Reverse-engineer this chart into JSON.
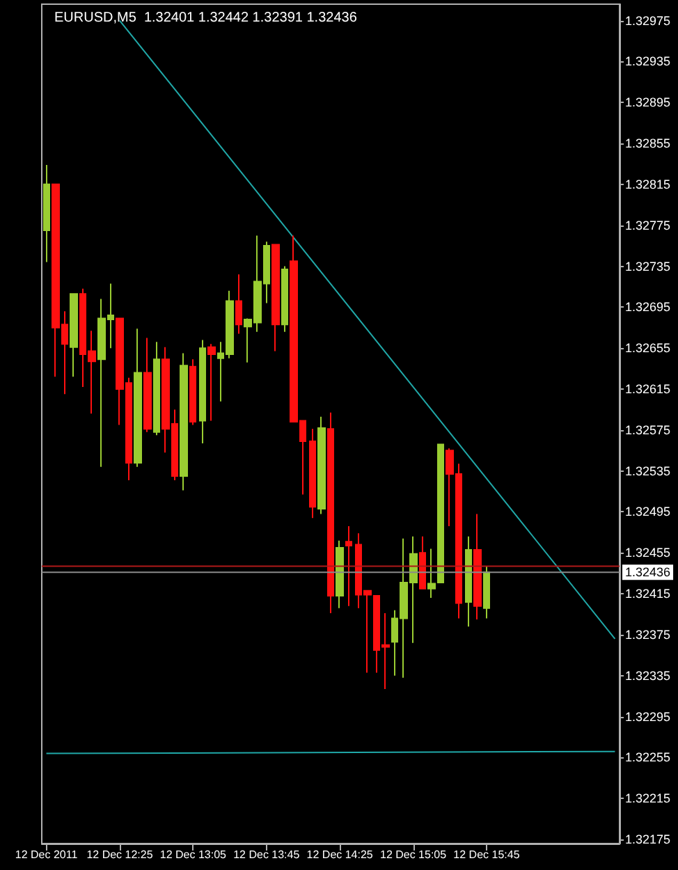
{
  "chart_data": {
    "type": "candlestick",
    "title": "EURUSD,M5  1.32401 1.32442 1.32391 1.32436",
    "categories": [
      "12 Dec 2011",
      null,
      null,
      null,
      null,
      null,
      null,
      null,
      "12 Dec 12:25",
      null,
      null,
      null,
      null,
      null,
      null,
      null,
      "12 Dec 13:05",
      null,
      null,
      null,
      null,
      null,
      null,
      null,
      "12 Dec 13:45",
      null,
      null,
      null,
      null,
      null,
      null,
      null,
      "12 Dec 14:25",
      null,
      null,
      null,
      null,
      null,
      null,
      null,
      "12 Dec 15:05",
      null,
      null,
      null,
      null,
      null,
      null,
      null,
      "12 Dec 15:45",
      null,
      null,
      null,
      null,
      null,
      null,
      null,
      null,
      null,
      null,
      null,
      null,
      null,
      null
    ],
    "series": [
      {
        "type": "candlestick",
        "ohlc": [
          [
            1.3277,
            1.32834,
            1.32739,
            1.32815
          ],
          [
            1.32815,
            1.32815,
            1.32627,
            1.32675
          ],
          [
            1.32678,
            1.32691,
            1.3261,
            1.32659
          ],
          [
            1.32656,
            1.32708,
            1.32627,
            1.32708
          ],
          [
            1.32708,
            1.32713,
            1.32617,
            1.32649
          ],
          [
            1.32652,
            1.32672,
            1.32591,
            1.32642
          ],
          [
            1.32644,
            1.32703,
            1.32539,
            1.32684
          ],
          [
            1.32683,
            1.32718,
            1.32655,
            1.32687
          ],
          [
            1.32684,
            1.32684,
            1.3258,
            1.32615
          ],
          [
            1.32621,
            1.32626,
            1.32526,
            1.32543
          ],
          [
            1.32543,
            1.32674,
            1.32539,
            1.32631
          ],
          [
            1.32631,
            1.32665,
            1.32573,
            1.32576
          ],
          [
            1.32573,
            1.32661,
            1.3257,
            1.32644
          ],
          [
            1.32644,
            1.32656,
            1.32553,
            1.32576
          ],
          [
            1.32581,
            1.32595,
            1.32526,
            1.3253
          ],
          [
            1.3253,
            1.3265,
            1.32516,
            1.32638
          ],
          [
            1.32637,
            1.32644,
            1.3258,
            1.32583
          ],
          [
            1.32584,
            1.32663,
            1.32562,
            1.32655
          ],
          [
            1.32656,
            1.32659,
            1.32584,
            1.32649
          ],
          [
            1.32645,
            1.32661,
            1.32603,
            1.3265
          ],
          [
            1.32649,
            1.32711,
            1.32645,
            1.32701
          ],
          [
            1.32701,
            1.32727,
            1.32669,
            1.32678
          ],
          [
            1.32676,
            1.32684,
            1.32641,
            1.32683
          ],
          [
            1.3268,
            1.32765,
            1.32671,
            1.3272
          ],
          [
            1.32718,
            1.32759,
            1.32699,
            1.32755
          ],
          [
            1.32756,
            1.32756,
            1.32652,
            1.32678
          ],
          [
            1.32678,
            1.32735,
            1.32671,
            1.32732
          ],
          [
            1.3274,
            1.32765,
            1.32583,
            1.32583
          ],
          [
            1.32584,
            1.32584,
            1.32512,
            1.32564
          ],
          [
            1.32564,
            1.32576,
            1.32489,
            1.325
          ],
          [
            1.32498,
            1.32588,
            1.32493,
            1.32577
          ],
          [
            1.32576,
            1.32592,
            1.32396,
            1.32413
          ],
          [
            1.32413,
            1.32467,
            1.32401,
            1.3246
          ],
          [
            1.32466,
            1.32481,
            1.32403,
            1.32462
          ],
          [
            1.32463,
            1.32474,
            1.32401,
            1.32414
          ],
          [
            1.32418,
            1.32418,
            1.32338,
            1.32414
          ],
          [
            1.32413,
            1.32413,
            1.32338,
            1.3236
          ],
          [
            1.32365,
            1.32396,
            1.32322,
            1.32363
          ],
          [
            1.32368,
            1.32399,
            1.32335,
            1.32391
          ],
          [
            1.32391,
            1.32469,
            1.32333,
            1.32426
          ],
          [
            1.32426,
            1.32471,
            1.32367,
            1.32454
          ],
          [
            1.32455,
            1.32471,
            1.3242,
            1.3242
          ],
          [
            1.3242,
            1.32459,
            1.32411,
            1.32425
          ],
          [
            1.32426,
            1.32561,
            1.32426,
            1.32561
          ],
          [
            1.32555,
            1.32557,
            1.32481,
            1.32532
          ],
          [
            1.32532,
            1.32542,
            1.32391,
            1.32406
          ],
          [
            1.32407,
            1.32471,
            1.32383,
            1.32458
          ],
          [
            1.32458,
            1.32493,
            1.3239,
            1.32403
          ],
          [
            1.32401,
            1.32442,
            1.32391,
            1.32436
          ],
          null,
          null,
          null,
          null,
          null,
          null,
          null,
          null,
          null,
          null,
          null,
          null,
          null,
          null
        ],
        "colors": [
          "#9acd32",
          "#ff1010",
          "#ff1010",
          "#9acd32",
          "#ff1010",
          "#ff1010",
          "#9acd32",
          "#9acd32",
          "#ff1010",
          "#ff1010",
          "#9acd32",
          "#ff1010",
          "#9acd32",
          "#ff1010",
          "#ff1010",
          "#9acd32",
          "#ff1010",
          "#9acd32",
          "#ff1010",
          "#9acd32",
          "#9acd32",
          "#ff1010",
          "#9acd32",
          "#9acd32",
          "#9acd32",
          "#ff1010",
          "#9acd32",
          "#ff1010",
          "#ff1010",
          "#ff1010",
          "#9acd32",
          "#ff1010",
          "#9acd32",
          "#ff1010",
          "#ff1010",
          "#ff1010",
          "#ff1010",
          "#ff1010",
          "#9acd32",
          "#9acd32",
          "#9acd32",
          "#ff1010",
          "#9acd32",
          "#9acd32",
          "#ff1010",
          "#ff1010",
          "#9acd32",
          "#ff1010",
          "#9acd32",
          null,
          null,
          null,
          null,
          null,
          null,
          null,
          null,
          null,
          null,
          null,
          null,
          null,
          null
        ]
      },
      {
        "type": "line",
        "color": "#20a8a8",
        "values": [
          null,
          null,
          null,
          null,
          null,
          null,
          null,
          null,
          1.32975,
          null,
          null,
          null,
          null,
          null,
          null,
          null,
          null,
          null,
          null,
          null,
          null,
          null,
          null,
          null,
          null,
          null,
          null,
          null,
          null,
          null,
          null,
          null,
          null,
          null,
          null,
          null,
          null,
          null,
          null,
          null,
          null,
          null,
          null,
          null,
          null,
          null,
          null,
          null,
          null,
          null,
          null,
          null,
          null,
          null,
          null,
          null,
          null,
          null,
          null,
          null,
          null,
          null,
          1.32371
        ]
      },
      {
        "type": "line",
        "color": "#20a8a8",
        "values": [
          1.32259,
          null,
          null,
          null,
          null,
          null,
          null,
          null,
          null,
          null,
          null,
          null,
          null,
          null,
          null,
          null,
          null,
          null,
          null,
          null,
          null,
          null,
          null,
          null,
          null,
          null,
          null,
          null,
          null,
          null,
          null,
          null,
          null,
          null,
          null,
          null,
          null,
          null,
          null,
          null,
          null,
          null,
          null,
          null,
          null,
          null,
          null,
          null,
          null,
          null,
          null,
          null,
          null,
          null,
          null,
          null,
          null,
          null,
          null,
          null,
          null,
          null,
          1.32261
        ]
      }
    ],
    "ylim": [
      1.32171,
      1.32991
    ],
    "yticks": [
      1.32175,
      1.32215,
      1.32255,
      1.32295,
      1.32335,
      1.32375,
      1.32415,
      1.32455,
      1.32495,
      1.32535,
      1.32575,
      1.32615,
      1.32655,
      1.32695,
      1.32735,
      1.32775,
      1.32815,
      1.32855,
      1.32895,
      1.32935,
      1.32975
    ],
    "ref_lines": [
      {
        "axis": "y",
        "value": 1.32442,
        "color": "#b01818"
      },
      {
        "axis": "y",
        "value": 1.32436,
        "label": "1.32436",
        "color": "#8a8a8a"
      }
    ],
    "grid": false,
    "marker": "none",
    "line_style": "solid"
  }
}
